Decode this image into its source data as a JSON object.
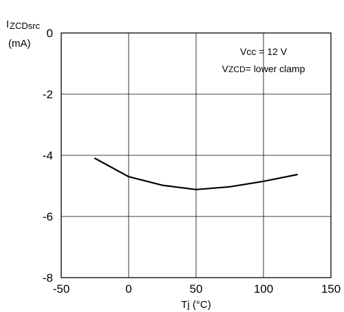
{
  "chart_data": {
    "type": "line",
    "title": "",
    "ylabel": {
      "main": "I",
      "sub": "ZCDsrc",
      "unit": "(mA)"
    },
    "xlabel": "Tj  (°C)",
    "xlim": [
      -50,
      150
    ],
    "ylim": [
      -8,
      0
    ],
    "xticks": [
      "-50",
      "0",
      "50",
      "100",
      "150"
    ],
    "yticks": [
      "0",
      "-2",
      "-4",
      "-6",
      "-8"
    ],
    "grid": true,
    "annotations": {
      "line1": "Vcc = 12 V",
      "line2_prefix": "V",
      "line2_sub": "ZCD",
      "line2_suffix": "= lower clamp"
    },
    "series": [
      {
        "x": [
          -25,
          0,
          25,
          50,
          75,
          100,
          125
        ],
        "y": [
          -4.1,
          -4.7,
          -4.98,
          -5.12,
          -5.03,
          -4.85,
          -4.63
        ]
      }
    ],
    "colors": {
      "line": "#000000",
      "grid": "#000000"
    }
  }
}
